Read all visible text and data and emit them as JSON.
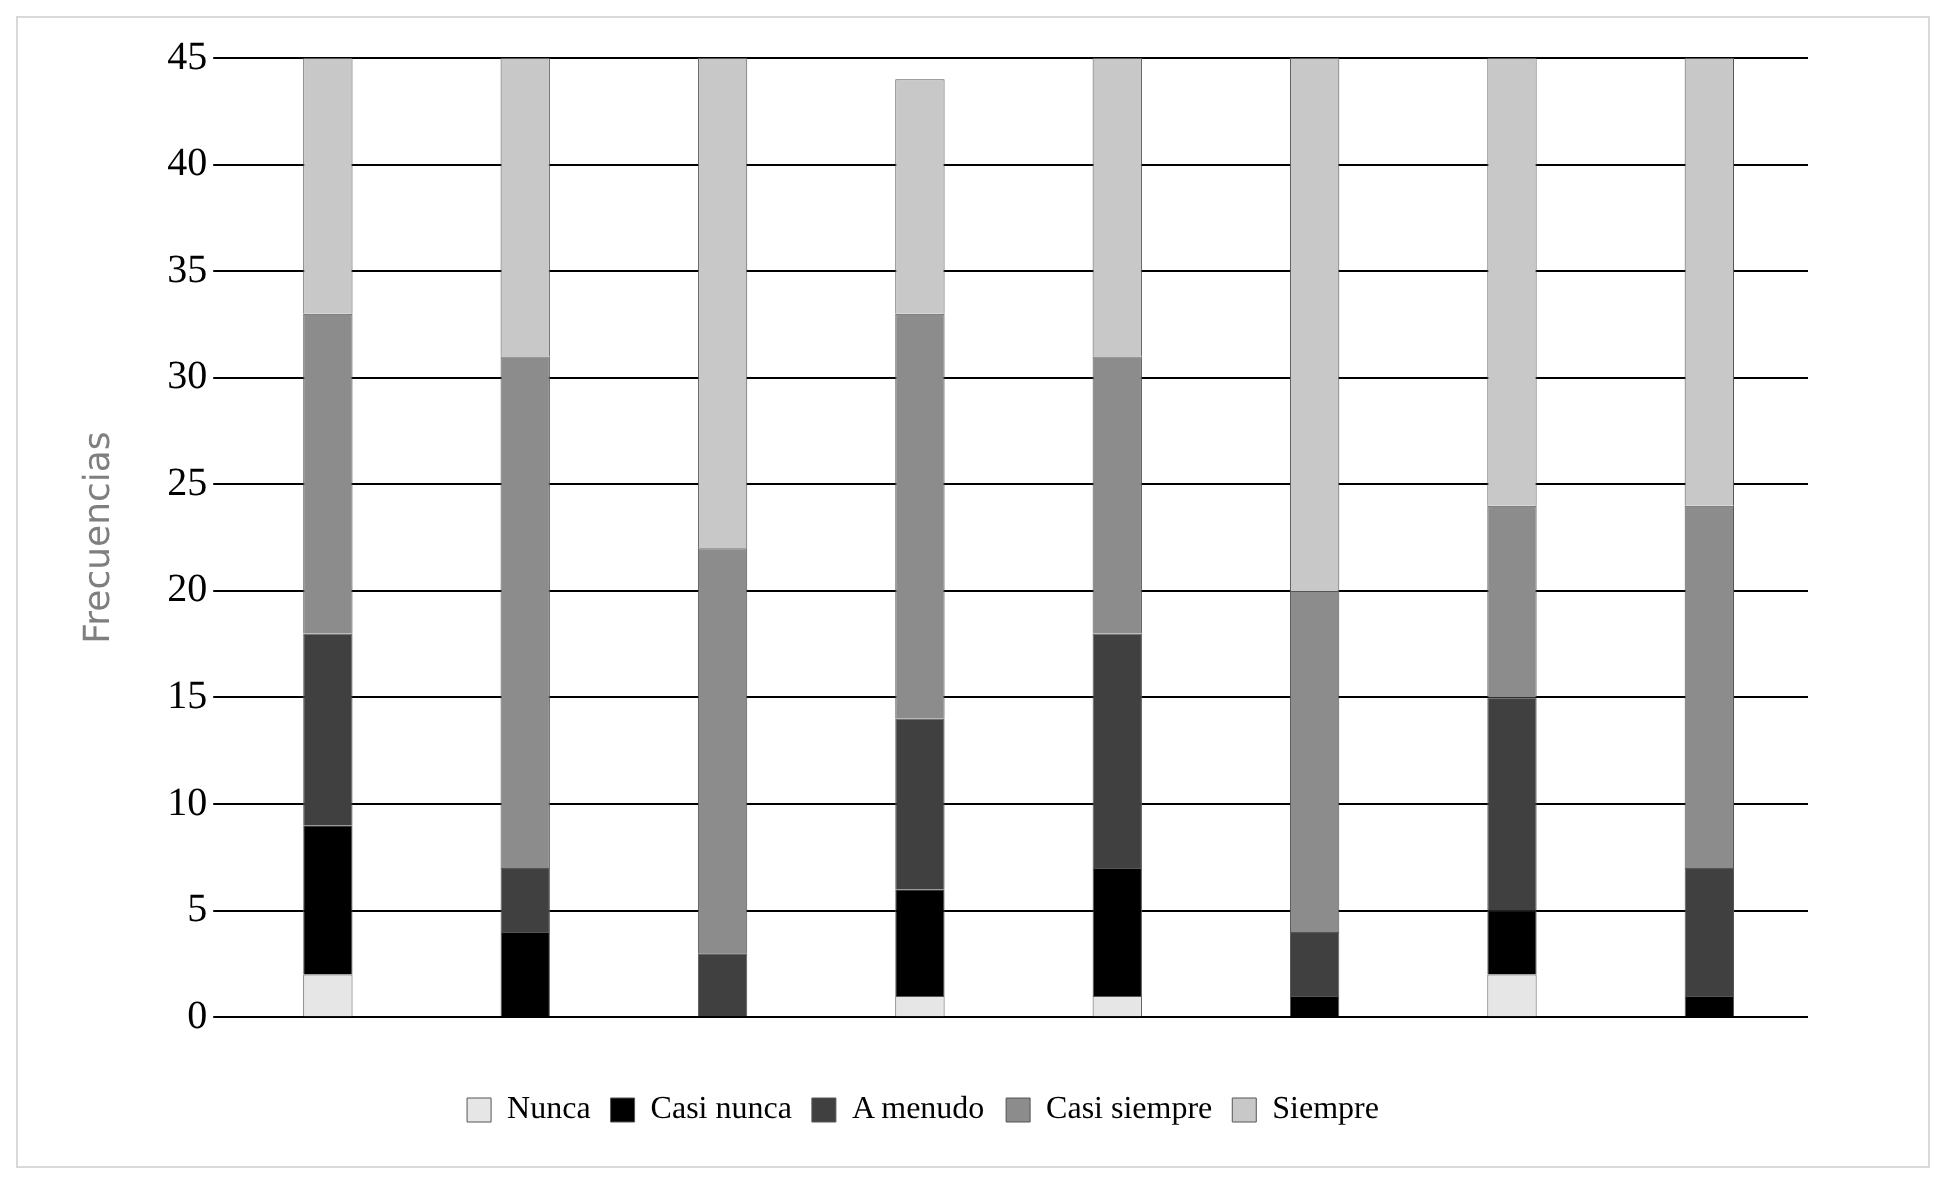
{
  "chart_data": {
    "type": "bar",
    "stacked": true,
    "ylabel": "Frecuencias",
    "categories": [
      null,
      null,
      null,
      null,
      null,
      null,
      null,
      null
    ],
    "series": [
      {
        "name": "Nunca",
        "color": "#e6e6e6",
        "values": [
          2,
          0,
          0,
          1,
          1,
          0,
          2,
          0
        ]
      },
      {
        "name": "Casi nunca",
        "color": "#000000",
        "values": [
          7,
          4,
          0,
          5,
          6,
          1,
          3,
          1
        ]
      },
      {
        "name": "A menudo",
        "color": "#404040",
        "values": [
          9,
          3,
          3,
          8,
          11,
          3,
          10,
          6
        ]
      },
      {
        "name": "Casi siempre",
        "color": "#8c8c8c",
        "values": [
          15,
          24,
          19,
          19,
          13,
          16,
          9,
          17
        ]
      },
      {
        "name": "Siempre",
        "color": "#c8c8c8",
        "values": [
          12,
          14,
          23,
          11,
          14,
          25,
          21,
          21
        ]
      }
    ],
    "ylim": [
      0,
      45
    ],
    "yticks": [
      0,
      5,
      10,
      15,
      20,
      25,
      30,
      35,
      40,
      45
    ],
    "grid": "y",
    "legend": "bottom"
  }
}
